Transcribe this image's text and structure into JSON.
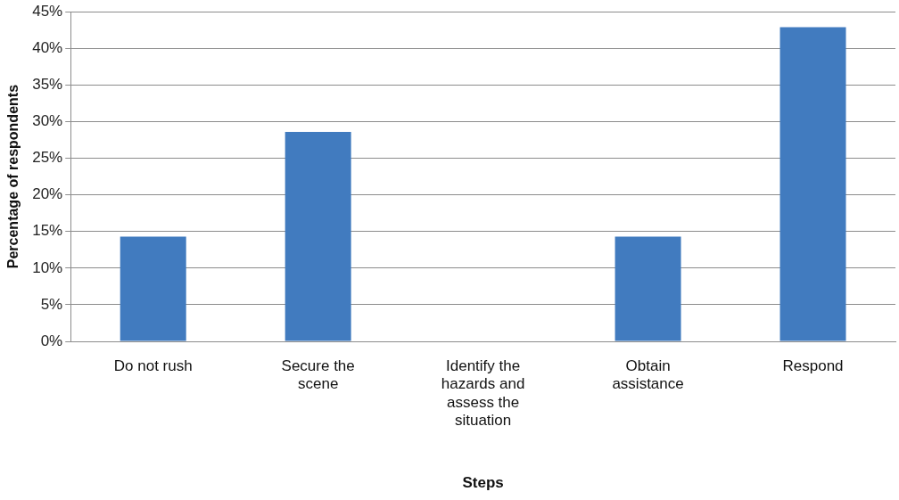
{
  "chart_data": {
    "type": "bar",
    "xlabel": "Steps",
    "ylabel": "Percentage of respondents",
    "categories": [
      "Do not rush",
      "Secure the scene",
      "Identify the hazards and assess the situation",
      "Obtain assistance",
      "Respond"
    ],
    "values": [
      14.3,
      28.6,
      0,
      14.3,
      42.9
    ],
    "color": "#417bbf",
    "ylim": [
      0,
      45
    ],
    "yticks": [
      {
        "value": 0,
        "label": "0%"
      },
      {
        "value": 5,
        "label": "5%"
      },
      {
        "value": 10,
        "label": "10%"
      },
      {
        "value": 15,
        "label": "15%"
      },
      {
        "value": 20,
        "label": "20%"
      },
      {
        "value": 25,
        "label": "25%"
      },
      {
        "value": 30,
        "label": "30%"
      },
      {
        "value": 35,
        "label": "35%"
      },
      {
        "value": 40,
        "label": "40%"
      },
      {
        "value": 45,
        "label": "45%"
      }
    ],
    "grid": "y"
  }
}
